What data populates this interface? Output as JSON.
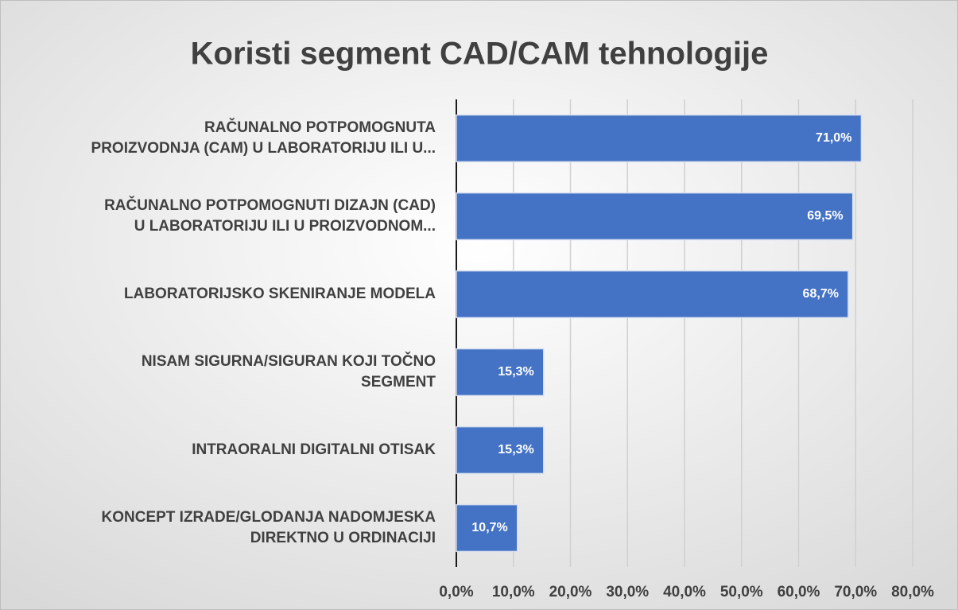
{
  "chart_data": {
    "type": "barh",
    "title": "Koristi segment CAD/CAM tehnologije",
    "categories": [
      "RAČUNALNO POTPOMOGNUTA\nPROIZVODNJA (CAM) U LABORATORIJU ILI U...",
      "RAČUNALNO POTPOMOGNUTI DIZAJN (CAD)\nU LABORATORIJU ILI U PROIZVODNOM...",
      "LABORATORIJSKO SKENIRANJE MODELA",
      "NISAM SIGURNA/SIGURAN  KOJI TOČNO\nSEGMENT",
      "INTRAORALNI DIGITALNI OTISAK",
      "KONCEPT IZRADE/GLODANJA NADOMJESKA\nDIREKTNO U ORDINACIJI"
    ],
    "values": [
      71.0,
      69.5,
      68.7,
      15.3,
      15.3,
      10.7
    ],
    "value_labels": [
      "71,0%",
      "69,5%",
      "68,7%",
      "15,3%",
      "15,3%",
      "10,7%"
    ],
    "color": "#4472c4",
    "xlim": [
      0,
      80
    ],
    "xticks": [
      {
        "value": 0,
        "label": "0,0%"
      },
      {
        "value": 10,
        "label": "10,0%"
      },
      {
        "value": 20,
        "label": "20,0%"
      },
      {
        "value": 30,
        "label": "30,0%"
      },
      {
        "value": 40,
        "label": "40,0%"
      },
      {
        "value": 50,
        "label": "50,0%"
      },
      {
        "value": 60,
        "label": "60,0%"
      },
      {
        "value": 70,
        "label": "70,0%"
      },
      {
        "value": 80,
        "label": "80,0%"
      }
    ],
    "grid": true
  }
}
